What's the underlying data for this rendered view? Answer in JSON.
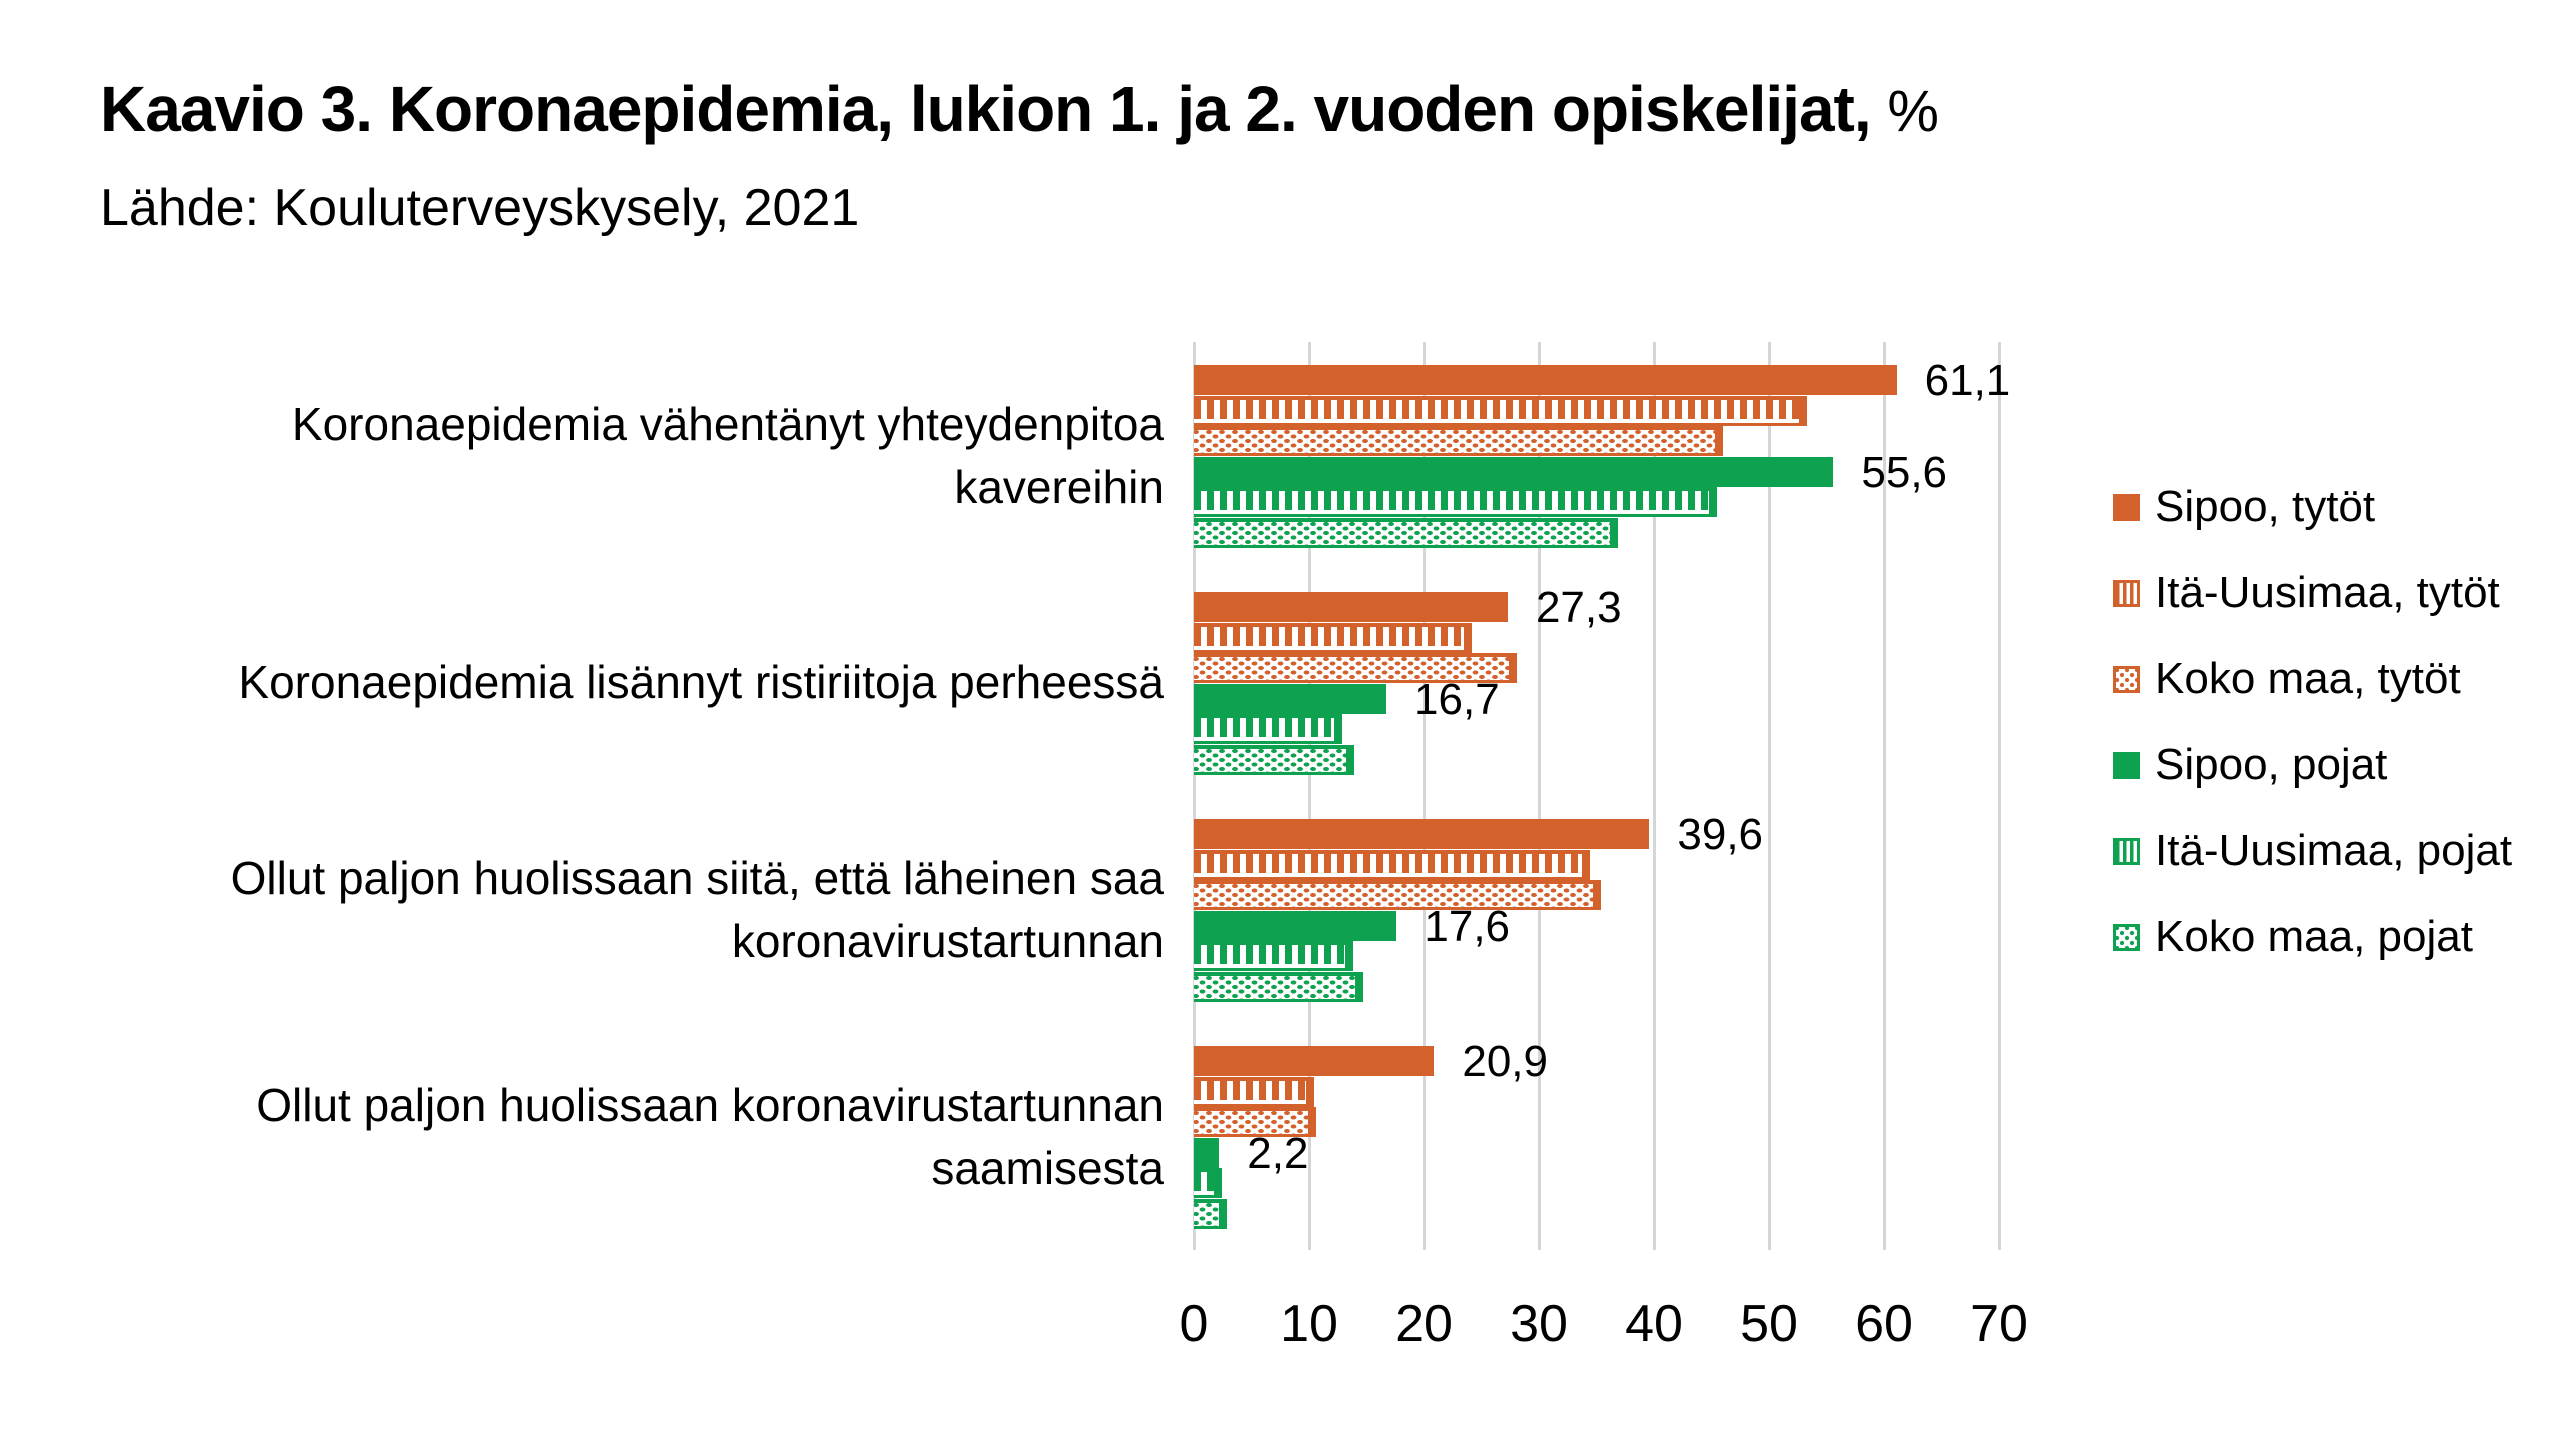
{
  "title": {
    "text": "Kaavio 3. Koronaepidemia, lukion 1. ja 2. vuoden opiskelijat,",
    "suffix": "%"
  },
  "subtitle": "Lähde: Kouluterveyskysely, 2021",
  "chart_data": {
    "type": "bar",
    "orientation": "horizontal",
    "title": "Kaavio 3. Koronaepidemia, lukion 1. ja 2. vuoden opiskelijat, %",
    "subtitle": "Lähde: Kouluterveyskysely, 2021",
    "unit": "%",
    "xlabel": "",
    "ylabel": "",
    "xlim": [
      0,
      70
    ],
    "x_ticks": [
      0,
      10,
      20,
      30,
      40,
      50,
      60,
      70
    ],
    "x_tick_labels": [
      "0",
      "10",
      "20",
      "30",
      "40",
      "50",
      "60",
      "70"
    ],
    "grid": "vertical",
    "gridline_color": "#D6D6D6",
    "legend_position": "right",
    "decimal_separator": ",",
    "categories": [
      [
        "Koronaepidemia vähentänyt yhteydenpitoa",
        "kavereihin"
      ],
      [
        "Koronaepidemia lisännyt ristiriitoja perheessä"
      ],
      [
        "Ollut paljon huolissaan siitä, että läheinen saa",
        "koronavirustartunnan"
      ],
      [
        "Ollut paljon huolissaan koronavirustartunnan",
        "saamisesta"
      ]
    ],
    "series": [
      {
        "name": "Sipoo, tytöt",
        "color": "#D2612C",
        "pattern": "solid",
        "values": [
          61.1,
          27.3,
          39.6,
          20.9
        ],
        "labels": [
          "61,1",
          "27,3",
          "39,6",
          "20,9"
        ]
      },
      {
        "name": "Itä-Uusimaa, tytöt",
        "color": "#D2612C",
        "pattern": "striped",
        "values": [
          53.3,
          24.2,
          34.4,
          10.4
        ],
        "labels": null
      },
      {
        "name": "Koko maa, tytöt",
        "color": "#D2612C",
        "pattern": "dotted",
        "values": [
          46.0,
          28.1,
          35.4,
          10.6
        ],
        "labels": null
      },
      {
        "name": "Sipoo, pojat",
        "color": "#0EA150",
        "pattern": "solid",
        "values": [
          55.6,
          16.7,
          17.6,
          2.2
        ],
        "labels": [
          "55,6",
          "16,7",
          "17,6",
          "2,2"
        ]
      },
      {
        "name": "Itä-Uusimaa, pojat",
        "color": "#0EA150",
        "pattern": "striped",
        "values": [
          45.5,
          12.9,
          13.8,
          2.4
        ],
        "labels": null
      },
      {
        "name": "Koko maa, pojat",
        "color": "#0EA150",
        "pattern": "dotted",
        "values": [
          36.9,
          13.9,
          14.7,
          2.9
        ],
        "labels": null
      }
    ]
  }
}
